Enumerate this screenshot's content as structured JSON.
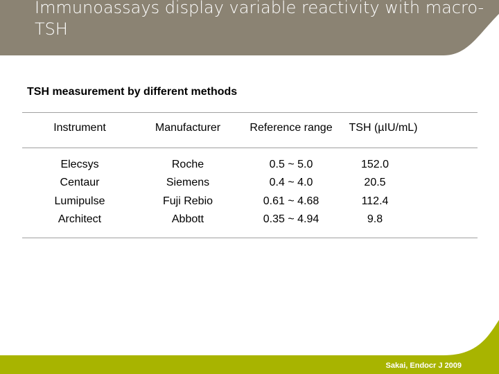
{
  "slide": {
    "title": "Immunoassays display variable reactivity with macro-TSH",
    "subtitle": "TSH measurement by different methods",
    "citation": "Sakai, Endocr J 2009",
    "colors": {
      "header": "#8b8373",
      "footer": "#a8b400"
    }
  },
  "table": {
    "columns": [
      "Instrument",
      "Manufacturer",
      "Reference range",
      "TSH (µIU/mL)"
    ],
    "rows": [
      [
        "Elecsys",
        "Roche",
        "0.5 ~ 5.0",
        "152.0"
      ],
      [
        "Centaur",
        "Siemens",
        "0.4 ~ 4.0",
        "20.5"
      ],
      [
        "Lumipulse",
        "Fuji Rebio",
        "0.61 ~ 4.68",
        "112.4"
      ],
      [
        "Architect",
        "Abbott",
        "0.35 ~ 4.94",
        "9.8"
      ]
    ]
  }
}
